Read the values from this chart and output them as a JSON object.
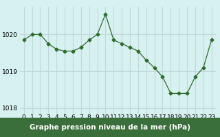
{
  "x": [
    0,
    1,
    2,
    3,
    4,
    5,
    6,
    7,
    8,
    9,
    10,
    11,
    12,
    13,
    14,
    15,
    16,
    17,
    18,
    19,
    20,
    21,
    22,
    23
  ],
  "y": [
    1019.85,
    1020.0,
    1020.0,
    1019.75,
    1019.6,
    1019.55,
    1019.55,
    1019.65,
    1019.85,
    1020.0,
    1020.55,
    1019.85,
    1019.75,
    1019.65,
    1019.55,
    1019.3,
    1019.1,
    1018.85,
    1018.4,
    1018.4,
    1018.4,
    1018.85,
    1019.1,
    1019.85
  ],
  "line_color": "#2d6b2d",
  "marker": "D",
  "marker_size": 2.5,
  "bg_color": "#d7f0f0",
  "grid_color": "#c0d8d8",
  "xlabel": "Graphe pression niveau de la mer (hPa)",
  "xlabel_bg": "#3a6e3a",
  "xlabel_color": "#ffffff",
  "ylim": [
    1017.85,
    1020.75
  ],
  "yticks": [
    1018,
    1019,
    1020
  ],
  "xticks": [
    0,
    1,
    2,
    3,
    4,
    5,
    6,
    7,
    8,
    9,
    10,
    11,
    12,
    13,
    14,
    15,
    16,
    17,
    18,
    19,
    20,
    21,
    22,
    23
  ],
  "tick_fontsize": 6.5,
  "label_fontsize": 7.5
}
